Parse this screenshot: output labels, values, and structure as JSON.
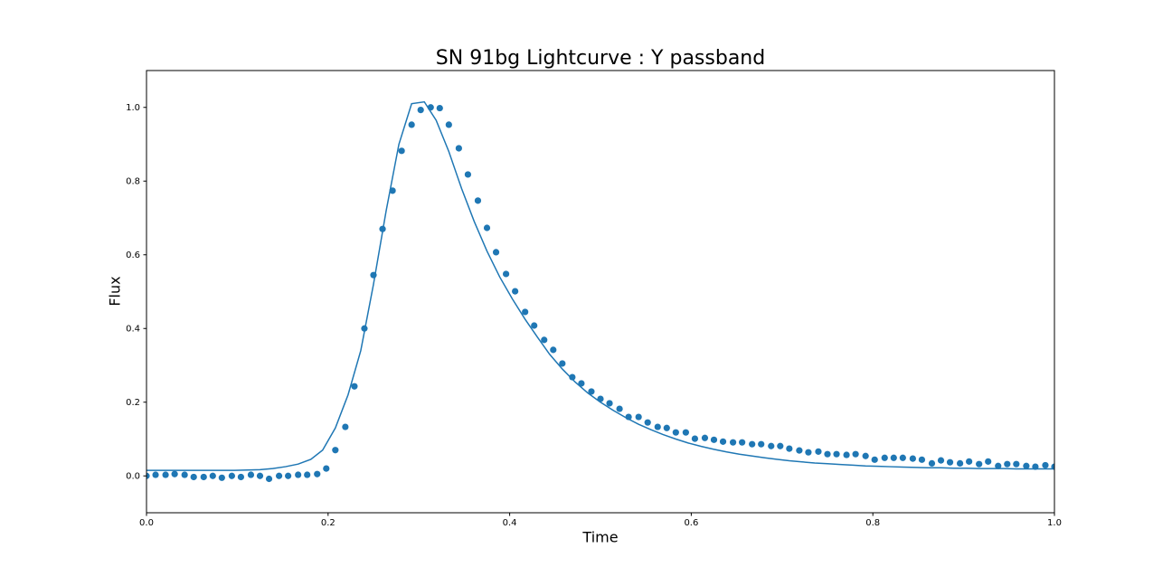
{
  "chart_data": {
    "type": "scatter",
    "title": "SN 91bg Lightcurve : Y passband",
    "xlabel": "Time",
    "ylabel": "Flux",
    "xlim": [
      0,
      1
    ],
    "ylim": [
      -0.1,
      1.1
    ],
    "xticks": [
      {
        "value": 0,
        "label": "0.0"
      },
      0.2,
      0.4,
      0.6,
      0.8,
      {
        "value": 1,
        "label": "1.0"
      }
    ],
    "yticks": [
      {
        "value": 0,
        "label": "0.0"
      },
      0.2,
      0.4,
      0.6,
      0.8,
      {
        "value": 1,
        "label": "1.0"
      }
    ],
    "grid": false,
    "series": [
      {
        "color": "#1f77b4",
        "style": "marker",
        "x": [
          0,
          0.01,
          0.021,
          0.031,
          0.042,
          0.052,
          0.063,
          0.073,
          0.083,
          0.094,
          0.104,
          0.115,
          0.125,
          0.135,
          0.146,
          0.156,
          0.167,
          0.177,
          0.188,
          0.198,
          0.208,
          0.219,
          0.229,
          0.24,
          0.25,
          0.26,
          0.271,
          0.281,
          0.292,
          0.302,
          0.313,
          0.323,
          0.333,
          0.344,
          0.354,
          0.365,
          0.375,
          0.385,
          0.396,
          0.406,
          0.417,
          0.427,
          0.438,
          0.448,
          0.458,
          0.469,
          0.479,
          0.49,
          0.5,
          0.51,
          0.521,
          0.531,
          0.542,
          0.552,
          0.563,
          0.573,
          0.583,
          0.594,
          0.604,
          0.615,
          0.625,
          0.635,
          0.646,
          0.656,
          0.667,
          0.677,
          0.688,
          0.698,
          0.708,
          0.719,
          0.729,
          0.74,
          0.75,
          0.76,
          0.771,
          0.781,
          0.792,
          0.802,
          0.813,
          0.823,
          0.833,
          0.844,
          0.854,
          0.865,
          0.875,
          0.885,
          0.896,
          0.906,
          0.917,
          0.927,
          0.938,
          0.948,
          0.958,
          0.969,
          0.979,
          0.99,
          1.0
        ],
        "values": [
          0,
          0.003,
          0.003,
          0.005,
          0.003,
          -0.003,
          -0.003,
          0,
          -0.005,
          0,
          -0.003,
          0.003,
          0,
          -0.008,
          0,
          0,
          0.003,
          0.003,
          0.005,
          0.02,
          0.07,
          0.133,
          0.243,
          0.4,
          0.545,
          0.67,
          0.774,
          0.882,
          0.953,
          0.993,
          1.0,
          0.998,
          0.953,
          0.889,
          0.818,
          0.747,
          0.673,
          0.607,
          0.548,
          0.501,
          0.445,
          0.408,
          0.369,
          0.342,
          0.305,
          0.268,
          0.251,
          0.229,
          0.209,
          0.197,
          0.182,
          0.16,
          0.16,
          0.145,
          0.133,
          0.13,
          0.118,
          0.118,
          0.101,
          0.103,
          0.098,
          0.093,
          0.091,
          0.091,
          0.086,
          0.086,
          0.081,
          0.081,
          0.074,
          0.069,
          0.064,
          0.066,
          0.059,
          0.059,
          0.057,
          0.059,
          0.054,
          0.044,
          0.049,
          0.049,
          0.049,
          0.047,
          0.044,
          0.034,
          0.042,
          0.037,
          0.034,
          0.039,
          0.032,
          0.039,
          0.027,
          0.032,
          0.032,
          0.027,
          0.025,
          0.029,
          0.025
        ]
      },
      {
        "color": "#1f77b4",
        "style": "line",
        "x": [
          0,
          0.014,
          0.028,
          0.042,
          0.056,
          0.069,
          0.083,
          0.097,
          0.111,
          0.125,
          0.139,
          0.153,
          0.167,
          0.181,
          0.194,
          0.208,
          0.222,
          0.236,
          0.25,
          0.264,
          0.278,
          0.292,
          0.306,
          0.319,
          0.333,
          0.347,
          0.361,
          0.375,
          0.389,
          0.403,
          0.417,
          0.431,
          0.444,
          0.458,
          0.472,
          0.486,
          0.5,
          0.514,
          0.528,
          0.542,
          0.556,
          0.569,
          0.583,
          0.597,
          0.611,
          0.625,
          0.639,
          0.653,
          0.667,
          0.681,
          0.694,
          0.708,
          0.722,
          0.736,
          0.75,
          0.764,
          0.778,
          0.792,
          0.806,
          0.819,
          0.833,
          0.847,
          0.861,
          0.875,
          0.889,
          0.903,
          0.917,
          0.931,
          0.944,
          0.958,
          0.972,
          0.986,
          1.0
        ],
        "values": [
          0.015,
          0.015,
          0.015,
          0.015,
          0.015,
          0.015,
          0.015,
          0.015,
          0.016,
          0.017,
          0.02,
          0.025,
          0.032,
          0.045,
          0.07,
          0.13,
          0.22,
          0.34,
          0.52,
          0.72,
          0.9,
          1.01,
          1.015,
          0.965,
          0.88,
          0.78,
          0.69,
          0.61,
          0.54,
          0.48,
          0.425,
          0.375,
          0.33,
          0.29,
          0.255,
          0.225,
          0.2,
          0.178,
          0.158,
          0.14,
          0.125,
          0.112,
          0.1,
          0.089,
          0.08,
          0.072,
          0.065,
          0.059,
          0.054,
          0.049,
          0.045,
          0.041,
          0.038,
          0.035,
          0.033,
          0.031,
          0.029,
          0.027,
          0.026,
          0.025,
          0.024,
          0.023,
          0.022,
          0.022,
          0.021,
          0.021,
          0.02,
          0.02,
          0.02,
          0.019,
          0.019,
          0.019,
          0.019
        ]
      }
    ]
  }
}
